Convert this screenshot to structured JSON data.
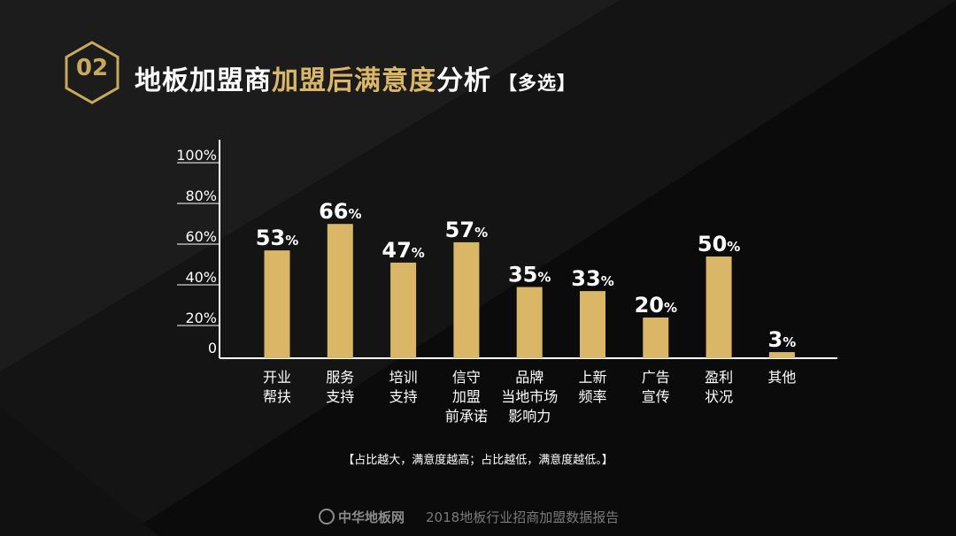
{
  "header": {
    "badge_number": "02",
    "title_white_1": "地板加盟商",
    "title_gold": "加盟后满意度",
    "title_white_2": "分析",
    "title_tag": "【多选】"
  },
  "chart_data": {
    "type": "bar",
    "categories": [
      [
        "开业",
        "帮扶"
      ],
      [
        "服务",
        "支持"
      ],
      [
        "培训",
        "支持"
      ],
      [
        "信守",
        "加盟",
        "前承诺"
      ],
      [
        "品牌",
        "当地市场",
        "影响力"
      ],
      [
        "上新",
        "频率"
      ],
      [
        "广告",
        "宣传"
      ],
      [
        "盈利",
        "状况"
      ],
      [
        "其他"
      ]
    ],
    "values": [
      53,
      66,
      47,
      57,
      35,
      33,
      20,
      50,
      3
    ],
    "value_suffix": "%",
    "y_ticks": [
      "0",
      "20%",
      "40%",
      "60%",
      "80%",
      "100%"
    ],
    "ylim": [
      0,
      100
    ],
    "bar_color": "#d9b766",
    "grid": false
  },
  "note": "【占比越大，满意度越高；占比越低，满意度越低。】",
  "footer": {
    "logo_text": "中华地板网",
    "report_title": "2018地板行业招商加盟数据报告"
  }
}
